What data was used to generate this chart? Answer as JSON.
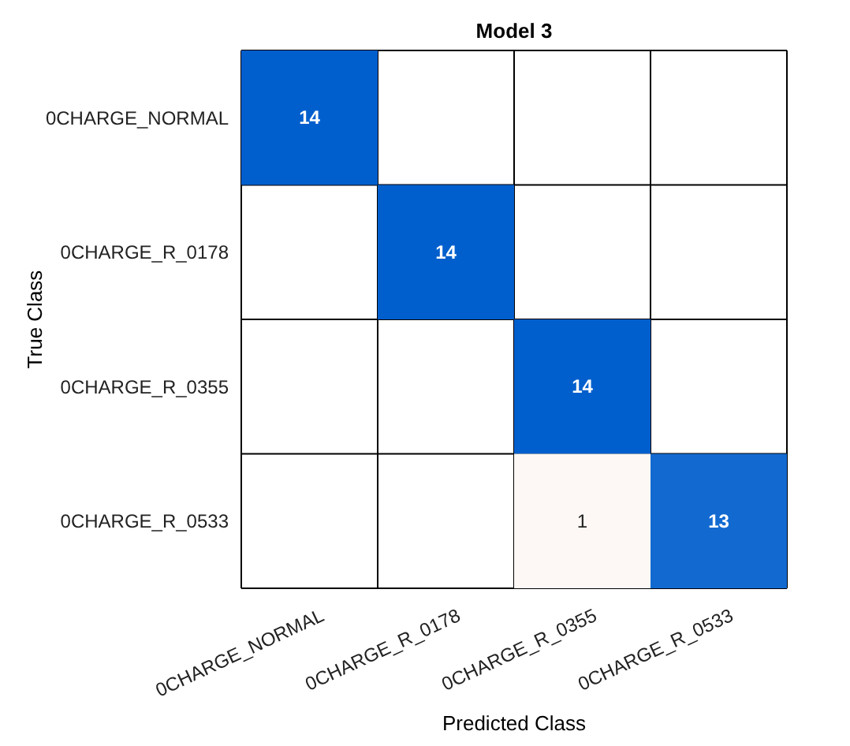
{
  "chart_data": {
    "type": "heatmap",
    "title": "Model 3",
    "xlabel": "Predicted Class",
    "ylabel": "True Class",
    "data_labels": true,
    "categories": [
      "0CHARGE_NORMAL",
      "0CHARGE_R_0178",
      "0CHARGE_R_0355",
      "0CHARGE_R_0533"
    ],
    "y_categories": [
      "0CHARGE_NORMAL",
      "0CHARGE_R_0178",
      "0CHARGE_R_0355",
      "0CHARGE_R_0533"
    ],
    "cells": [
      [
        14,
        null,
        null,
        null
      ],
      [
        null,
        14,
        null,
        null
      ],
      [
        null,
        null,
        14,
        null
      ],
      [
        null,
        null,
        1,
        13
      ]
    ]
  }
}
